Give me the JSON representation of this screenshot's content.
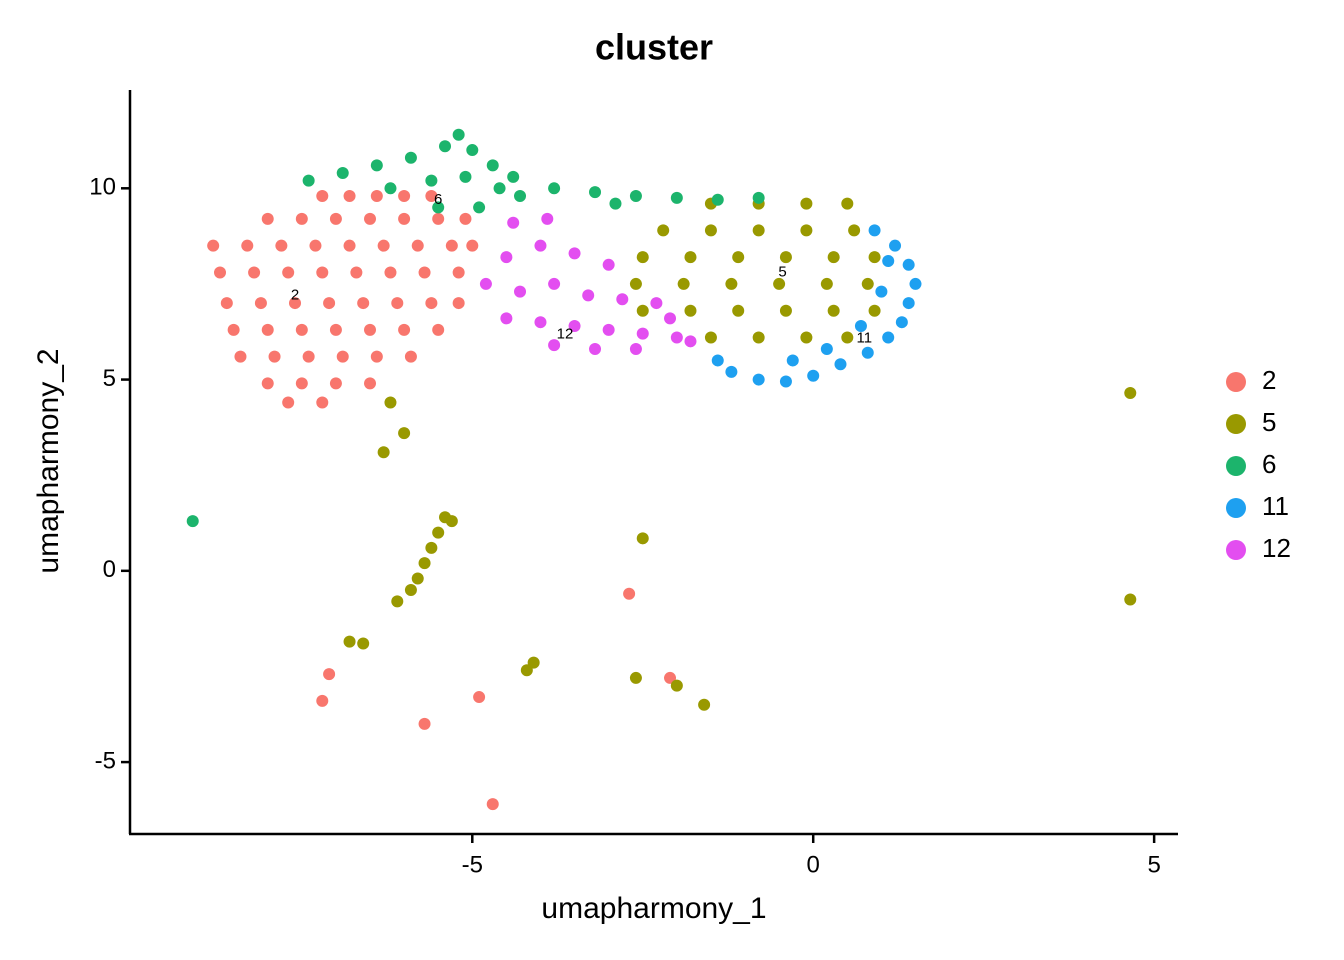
{
  "chart_data": {
    "type": "scatter",
    "title": "cluster",
    "x_label": "umapharmony_1",
    "y_label": "umapharmony_2",
    "xlim": [
      -10.02,
      5.35
    ],
    "ylim": [
      -6.88,
      12.57
    ],
    "xticks": [
      -5,
      0,
      5
    ],
    "yticks": [
      -5,
      0,
      5,
      10
    ],
    "grid": false,
    "legend": "right",
    "series": [
      {
        "name": "2",
        "color": "#f8766d",
        "x": [
          -7.2,
          -6.8,
          -6.4,
          -6.0,
          -5.6,
          -8.0,
          -7.5,
          -7.0,
          -6.5,
          -6.0,
          -5.5,
          -5.1,
          -8.8,
          -8.3,
          -7.8,
          -7.3,
          -6.8,
          -6.3,
          -5.8,
          -5.3,
          -5.0,
          -8.7,
          -8.2,
          -7.7,
          -7.2,
          -6.7,
          -6.2,
          -5.7,
          -5.2,
          -8.6,
          -8.1,
          -7.6,
          -7.1,
          -6.6,
          -6.1,
          -5.6,
          -5.2,
          -8.5,
          -8.0,
          -7.5,
          -7.0,
          -6.5,
          -6.0,
          -5.5,
          -8.4,
          -7.9,
          -7.4,
          -6.9,
          -6.4,
          -5.9,
          -8.0,
          -7.5,
          -7.0,
          -6.5,
          -7.7,
          -7.2,
          -7.1,
          -7.2,
          -5.7,
          -4.9,
          -4.7,
          -2.7,
          -2.1
        ],
        "y": [
          9.8,
          9.8,
          9.8,
          9.8,
          9.8,
          9.2,
          9.2,
          9.2,
          9.2,
          9.2,
          9.2,
          9.2,
          8.5,
          8.5,
          8.5,
          8.5,
          8.5,
          8.5,
          8.5,
          8.5,
          8.5,
          7.8,
          7.8,
          7.8,
          7.8,
          7.8,
          7.8,
          7.8,
          7.8,
          7.0,
          7.0,
          7.0,
          7.0,
          7.0,
          7.0,
          7.0,
          7.0,
          6.3,
          6.3,
          6.3,
          6.3,
          6.3,
          6.3,
          6.3,
          5.6,
          5.6,
          5.6,
          5.6,
          5.6,
          5.6,
          4.9,
          4.9,
          4.9,
          4.9,
          4.4,
          4.4,
          -2.7,
          -3.4,
          -4.0,
          -3.3,
          -6.1,
          -0.6,
          -2.8
        ]
      },
      {
        "name": "5",
        "color": "#999900",
        "x": [
          -1.5,
          -0.8,
          -0.1,
          0.5,
          -2.2,
          -1.5,
          -0.8,
          -0.1,
          0.6,
          -2.5,
          -1.8,
          -1.1,
          -0.4,
          0.3,
          0.9,
          -2.6,
          -1.9,
          -1.2,
          -0.5,
          0.2,
          0.8,
          -2.5,
          -1.8,
          -1.1,
          -0.4,
          0.3,
          0.9,
          -1.5,
          -0.8,
          -0.1,
          0.5,
          -5.4,
          -5.5,
          -5.6,
          -5.7,
          -5.8,
          -5.9,
          -5.3,
          -6.1,
          -6.6,
          -6.8,
          -4.2,
          -4.1,
          -2.6,
          -2.0,
          -1.6,
          -2.5,
          4.65,
          4.65,
          -6.3,
          -6.0,
          -6.2
        ],
        "y": [
          9.6,
          9.6,
          9.6,
          9.6,
          8.9,
          8.9,
          8.9,
          8.9,
          8.9,
          8.2,
          8.2,
          8.2,
          8.2,
          8.2,
          8.2,
          7.5,
          7.5,
          7.5,
          7.5,
          7.5,
          7.5,
          6.8,
          6.8,
          6.8,
          6.8,
          6.8,
          6.8,
          6.1,
          6.1,
          6.1,
          6.1,
          1.4,
          1.0,
          0.6,
          0.2,
          -0.2,
          -0.5,
          1.3,
          -0.8,
          -1.9,
          -1.85,
          -2.6,
          -2.4,
          -2.8,
          -3.0,
          -3.5,
          0.85,
          4.65,
          -0.75,
          3.1,
          3.6,
          4.4
        ]
      },
      {
        "name": "6",
        "color": "#1cb46c",
        "x": [
          -7.4,
          -6.9,
          -6.4,
          -5.9,
          -5.4,
          -5.0,
          -4.7,
          -6.2,
          -5.6,
          -5.1,
          -4.6,
          -5.5,
          -4.9,
          -4.3,
          -3.8,
          -3.2,
          -2.6,
          -2.0,
          -1.4,
          -0.8,
          -5.2,
          -4.4,
          -2.9,
          -9.1
        ],
        "y": [
          10.2,
          10.4,
          10.6,
          10.8,
          11.1,
          11.0,
          10.6,
          10.0,
          10.2,
          10.3,
          10.0,
          9.5,
          9.5,
          9.8,
          10.0,
          9.9,
          9.8,
          9.75,
          9.7,
          9.75,
          11.4,
          10.3,
          9.6,
          1.3
        ]
      },
      {
        "name": "11",
        "color": "#1ea0f0",
        "x": [
          0.9,
          1.2,
          1.4,
          1.5,
          1.4,
          1.3,
          1.1,
          0.8,
          0.4,
          0.0,
          -0.4,
          -0.8,
          -1.2,
          -1.4,
          0.2,
          -0.3,
          0.7,
          1.0,
          1.1
        ],
        "y": [
          8.9,
          8.5,
          8.0,
          7.5,
          7.0,
          6.5,
          6.1,
          5.7,
          5.4,
          5.1,
          4.95,
          5.0,
          5.2,
          5.5,
          5.8,
          5.5,
          6.4,
          7.3,
          8.1
        ]
      },
      {
        "name": "12",
        "color": "#e34ef0",
        "x": [
          -4.5,
          -4.0,
          -3.5,
          -3.0,
          -4.8,
          -4.3,
          -3.8,
          -3.3,
          -2.8,
          -2.3,
          -4.5,
          -4.0,
          -3.5,
          -3.0,
          -2.5,
          -2.0,
          -3.8,
          -3.2,
          -2.6,
          -4.4,
          -3.9,
          -2.1,
          -1.8
        ],
        "y": [
          8.2,
          8.5,
          8.3,
          8.0,
          7.5,
          7.3,
          7.5,
          7.2,
          7.1,
          7.0,
          6.6,
          6.5,
          6.4,
          6.3,
          6.2,
          6.1,
          5.9,
          5.8,
          5.8,
          9.1,
          9.2,
          6.6,
          6.0
        ]
      }
    ],
    "cluster_labels": [
      {
        "text": "2",
        "x": -7.6,
        "y": 7.2
      },
      {
        "text": "6",
        "x": -5.5,
        "y": 9.7
      },
      {
        "text": "5",
        "x": -0.45,
        "y": 7.8
      },
      {
        "text": "11",
        "x": 0.75,
        "y": 6.07
      },
      {
        "text": "12",
        "x": -3.64,
        "y": 6.18
      }
    ]
  }
}
